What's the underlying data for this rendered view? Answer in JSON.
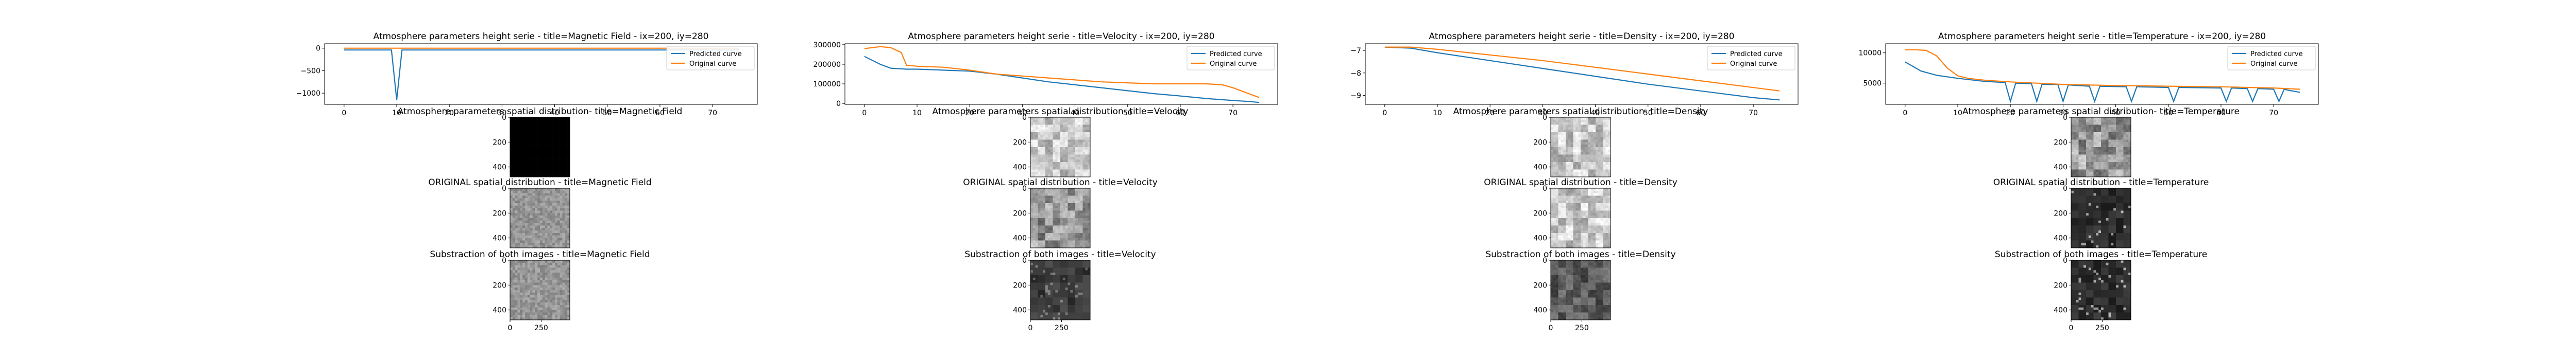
{
  "colors": {
    "predicted": "#1f77b4",
    "original": "#ff7f0e",
    "background": "#ffffff",
    "axis": "#000000"
  },
  "chart_data": [
    {
      "type": "line",
      "title": "Atmosphere parameters height serie - title=Magnetic Field - ix=200, iy=280",
      "xlim": [
        -3.7,
        78.5
      ],
      "ylim": [
        -1250,
        100
      ],
      "xticks": [
        0,
        10,
        20,
        30,
        40,
        50,
        60,
        70
      ],
      "yticks": [
        -1000,
        -500,
        0
      ],
      "ytick_labels": [
        "−1000",
        "−500",
        "0"
      ],
      "legend": "top-right",
      "series": [
        {
          "name": "Predicted curve",
          "x": [
            0,
            1,
            2,
            3,
            4,
            5,
            6,
            7,
            8,
            9,
            10,
            11,
            12,
            13,
            14,
            15,
            16,
            17,
            18,
            19,
            20,
            21,
            22,
            23,
            24,
            25,
            26,
            27,
            28,
            29,
            30,
            31,
            32,
            33,
            34,
            35,
            36,
            37,
            38,
            39,
            40,
            41,
            42,
            43,
            44,
            45,
            46,
            47,
            48,
            49,
            50,
            51,
            52,
            53,
            54,
            55,
            56,
            57,
            58,
            59,
            60,
            61,
            62,
            63,
            64,
            65,
            66,
            67,
            68,
            69,
            70,
            71,
            72,
            73,
            74,
            75
          ],
          "y": [
            -40,
            -40,
            -40,
            -40,
            -40,
            -40,
            -40,
            -40,
            -40,
            -40,
            -1150,
            -40,
            -40,
            -40,
            -40,
            -40,
            -40,
            -40,
            -40,
            -40,
            -40,
            -40,
            -40,
            -40,
            -40,
            -40,
            -40,
            -40,
            -40,
            -40,
            -40,
            -40,
            -40,
            -40,
            -40,
            -40,
            -40,
            -40,
            -40,
            -40,
            -40,
            -40,
            -40,
            -40,
            -40,
            -40,
            -40,
            -40,
            -40,
            -40,
            -40,
            -40,
            -40,
            -40,
            -40,
            -40,
            -40,
            -40,
            -40,
            -40,
            -40,
            -40,
            -40,
            -40,
            -40,
            -40,
            -40,
            -40,
            -40,
            -40,
            -40,
            -40,
            -40,
            -40,
            -40,
            -40
          ]
        },
        {
          "name": "Original curve",
          "x": [
            0,
            75
          ],
          "y": [
            0,
            0
          ]
        }
      ]
    },
    {
      "type": "line",
      "title": "Atmosphere parameters height serie - title=Velocity - ix=200, iy=280",
      "xlim": [
        -3.7,
        78.5
      ],
      "ylim": [
        -5000,
        305000
      ],
      "xticks": [
        0,
        10,
        20,
        30,
        40,
        50,
        60,
        70
      ],
      "yticks": [
        0,
        100000,
        200000,
        300000
      ],
      "ytick_labels": [
        "0",
        "100000",
        "200000",
        "300000"
      ],
      "legend": "top-right",
      "series": [
        {
          "name": "Predicted curve",
          "x": [
            0,
            3,
            5,
            8,
            10,
            15,
            20,
            25,
            30,
            35,
            40,
            45,
            50,
            55,
            60,
            65,
            70,
            73,
            75
          ],
          "y": [
            240000,
            200000,
            180000,
            175000,
            175000,
            170000,
            165000,
            150000,
            130000,
            110000,
            95000,
            80000,
            65000,
            50000,
            38000,
            25000,
            15000,
            10000,
            5000
          ]
        },
        {
          "name": "Original curve",
          "x": [
            0,
            3,
            5,
            7,
            8,
            10,
            15,
            20,
            25,
            30,
            35,
            40,
            45,
            50,
            55,
            60,
            65,
            68,
            70,
            73,
            75
          ],
          "y": [
            280000,
            290000,
            285000,
            260000,
            195000,
            190000,
            185000,
            170000,
            150000,
            140000,
            130000,
            120000,
            110000,
            105000,
            100000,
            100000,
            100000,
            95000,
            80000,
            50000,
            30000
          ]
        }
      ]
    },
    {
      "type": "line",
      "title": "Atmosphere parameters height serie - title=Density - ix=200, iy=280",
      "xlim": [
        -3.7,
        78.5
      ],
      "ylim": [
        -9.4,
        -6.7
      ],
      "xticks": [
        0,
        10,
        20,
        30,
        40,
        50,
        60,
        70
      ],
      "yticks": [
        -9,
        -8,
        -7
      ],
      "ytick_labels": [
        "−9",
        "−8",
        "−7"
      ],
      "legend": "top-right",
      "series": [
        {
          "name": "Predicted curve",
          "x": [
            0,
            5,
            10,
            20,
            30,
            40,
            50,
            60,
            70,
            75
          ],
          "y": [
            -6.85,
            -6.9,
            -7.1,
            -7.45,
            -7.8,
            -8.15,
            -8.5,
            -8.8,
            -9.1,
            -9.2
          ]
        },
        {
          "name": "Original curve",
          "x": [
            0,
            5,
            10,
            20,
            30,
            40,
            50,
            60,
            70,
            75
          ],
          "y": [
            -6.85,
            -6.85,
            -6.95,
            -7.2,
            -7.45,
            -7.75,
            -8.05,
            -8.35,
            -8.65,
            -8.8
          ]
        }
      ]
    },
    {
      "type": "line",
      "title": "Atmosphere parameters height serie - title=Temperature - ix=200, iy=280",
      "xlim": [
        -3.7,
        78.5
      ],
      "ylim": [
        1500,
        11500
      ],
      "xticks": [
        0,
        10,
        20,
        30,
        40,
        50,
        60,
        70
      ],
      "yticks": [
        5000,
        10000
      ],
      "ytick_labels": [
        "5000",
        "10000"
      ],
      "legend": "top-right",
      "series": [
        {
          "name": "Predicted curve",
          "x": [
            0,
            3,
            6,
            10,
            15,
            19,
            20,
            21,
            24,
            25,
            26,
            29,
            30,
            31,
            35,
            36,
            37,
            42,
            43,
            44,
            50,
            51,
            52,
            60,
            61,
            62,
            65,
            66,
            67,
            70,
            71,
            72,
            73,
            75
          ],
          "y": [
            8500,
            7000,
            6300,
            5800,
            5300,
            5100,
            2000,
            5000,
            4900,
            2000,
            4800,
            4800,
            2000,
            4700,
            4500,
            2000,
            4500,
            4400,
            2000,
            4400,
            4300,
            2000,
            4300,
            4200,
            2000,
            4200,
            4100,
            2000,
            4100,
            4000,
            2000,
            4000,
            3800,
            3500
          ]
        },
        {
          "name": "Original curve",
          "x": [
            0,
            2,
            4,
            6,
            8,
            10,
            12,
            15,
            20,
            25,
            30,
            40,
            50,
            60,
            70,
            75
          ],
          "y": [
            10500,
            10500,
            10400,
            9500,
            7500,
            6200,
            5800,
            5500,
            5200,
            5000,
            4800,
            4600,
            4500,
            4400,
            4200,
            4000
          ]
        }
      ]
    }
  ],
  "image_panels": [
    {
      "column": "Magnetic Field",
      "rows": [
        {
          "title": "Atmosphere parameters spatial distribution- title=Magnetic Field",
          "texture": "black"
        },
        {
          "title": "ORIGINAL spatial distribution - title=Magnetic Field",
          "texture": "gray-fine"
        },
        {
          "title": "Substraction of both images - title=Magnetic Field",
          "texture": "gray-fine"
        }
      ]
    },
    {
      "column": "Velocity",
      "rows": [
        {
          "title": "Atmosphere parameters spatial distribution- title=Velocity",
          "texture": "cells-light"
        },
        {
          "title": "ORIGINAL spatial distribution - title=Velocity",
          "texture": "cells-gray"
        },
        {
          "title": "Substraction of both images - title=Velocity",
          "texture": "dark-sparse"
        }
      ]
    },
    {
      "column": "Density",
      "rows": [
        {
          "title": "Atmosphere parameters spatial distribution- title=Density",
          "texture": "cells-light"
        },
        {
          "title": "ORIGINAL spatial distribution - title=Density",
          "texture": "cells-light"
        },
        {
          "title": "Substraction of both images - title=Density",
          "texture": "dark-medium"
        }
      ]
    },
    {
      "column": "Temperature",
      "rows": [
        {
          "title": "Atmosphere parameters spatial distribution- title=Temperature",
          "texture": "cells-gray"
        },
        {
          "title": "ORIGINAL spatial distribution - title=Temperature",
          "texture": "dark-bright"
        },
        {
          "title": "Substraction of both images - title=Temperature",
          "texture": "dark-bright"
        }
      ]
    }
  ],
  "image_axes": {
    "yticks": [
      "0",
      "200",
      "400"
    ],
    "xticks_bottom": [
      "0",
      "250"
    ]
  }
}
